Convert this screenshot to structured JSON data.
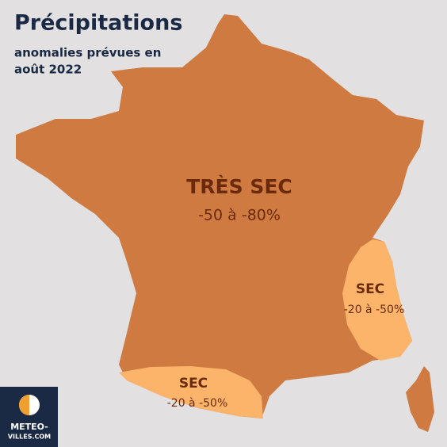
{
  "header": {
    "title": "Précipitations",
    "subtitle": [
      "anomalies prévues en",
      "août 2022"
    ]
  },
  "zones": [
    {
      "label": "TRÈS SEC",
      "range": "-50 à -80%"
    },
    {
      "label": "SEC",
      "range": "-20 à -50%"
    },
    {
      "label": "SEC",
      "range": "-20 à -50%"
    }
  ],
  "logo": {
    "lines": [
      "METEO-",
      "VILLES.COM"
    ]
  }
}
